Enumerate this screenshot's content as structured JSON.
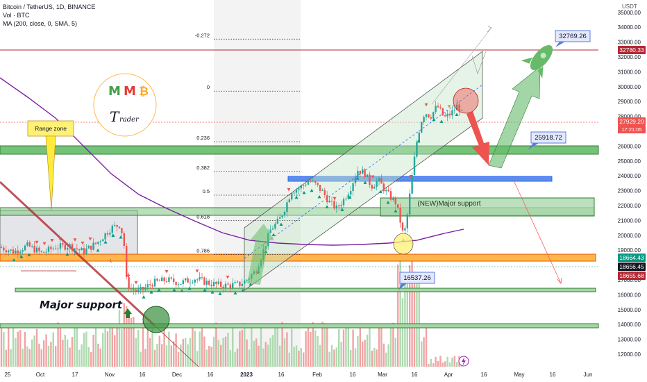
{
  "header": {
    "symbol": "Bitcoin / TetherUS, 1D, BINANCE",
    "volume": "Vol · BTC",
    "ma": "MA (200, close, 0, SMA, 5)"
  },
  "currency": "USDT",
  "chart_data": {
    "type": "candlestick",
    "x_ticks": [
      "25",
      "Oct",
      "17",
      "Nov",
      "16",
      "Dec",
      "16",
      "2023",
      "16",
      "Feb",
      "16",
      "Mar",
      "16",
      "Apr",
      "16",
      "May",
      "16",
      "Jun"
    ],
    "y_ticks": [
      12000,
      13000,
      14000,
      15000,
      16000,
      17000,
      18000,
      19000,
      20000,
      21000,
      22000,
      23000,
      24000,
      25000,
      26000,
      27000,
      28000,
      29000,
      30000,
      31000,
      32000,
      33000,
      34000,
      35000
    ],
    "ylim": [
      11500,
      35500
    ],
    "grid": false,
    "price_tags": [
      {
        "label": "32780.33",
        "value": 32780.33,
        "color": "#b22833"
      },
      {
        "label": "27929.20",
        "value": 27929.2,
        "color": "#ef5350"
      },
      {
        "label": "17:21:05",
        "value": 27400,
        "color": "#ef5350"
      },
      {
        "label": "18664.43",
        "value": 18664.43,
        "color": "#089981"
      },
      {
        "label": "18656.45",
        "value": 18656.45,
        "color": "#131722"
      },
      {
        "label": "18655.68",
        "value": 18655.68,
        "color": "#b22833"
      }
    ],
    "fib_levels": [
      {
        "label": "-0.272",
        "value": 33200
      },
      {
        "label": "0",
        "value": 29700
      },
      {
        "label": "0.236",
        "value": 26300
      },
      {
        "label": "0.382",
        "value": 24300
      },
      {
        "label": "0.5",
        "value": 22700
      },
      {
        "label": "0.618",
        "value": 21000
      },
      {
        "label": "0.786",
        "value": 18700
      }
    ],
    "annotations": {
      "range_zone": "Range zone",
      "major_support": "Major support",
      "new_major_support": "(NEW)Major support",
      "callout_high": "32769.26",
      "callout_mid": "25918.72",
      "callout_low": "16537.26"
    },
    "logo": {
      "letters": [
        "M",
        "M",
        "₿"
      ],
      "subtitle": "T",
      "subtitle_small": "rader"
    }
  },
  "colors": {
    "up": "#26a69a",
    "down": "#ef5350",
    "green_zone": "#4caf50",
    "orange_zone": "#ff9800",
    "blue_zone": "#2962ff",
    "ma_line": "#7b1fa2",
    "red_line": "#b22833"
  },
  "icons": {
    "flash": "lightning-icon",
    "rocket": "rocket-icon"
  }
}
